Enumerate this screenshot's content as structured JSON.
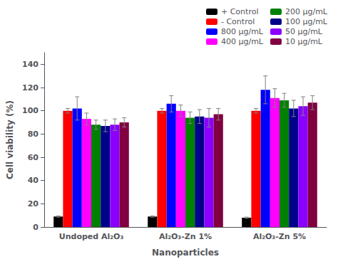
{
  "chart_data": {
    "type": "bar",
    "xlabel": "Nanoparticles",
    "ylabel": "Cell viability (%)",
    "categories": [
      "Undoped Al₂O₃",
      "Al₂O₃-Zn 1%",
      "Al₂O₃-Zn 5%"
    ],
    "series": [
      {
        "name": "+ Control",
        "color": "#000000",
        "values": [
          9,
          9,
          8
        ],
        "errors": [
          0.5,
          0.5,
          0.5
        ]
      },
      {
        "name": "- Control",
        "color": "#ff0000",
        "values": [
          100,
          100,
          100
        ],
        "errors": [
          2,
          2,
          2
        ]
      },
      {
        "name": "800 μg/mL",
        "color": "#0000ff",
        "values": [
          102,
          106,
          118
        ],
        "errors": [
          10,
          7,
          12
        ]
      },
      {
        "name": "400 μg/mL",
        "color": "#ff00ff",
        "values": [
          93,
          100,
          111
        ],
        "errors": [
          5,
          5,
          8
        ]
      },
      {
        "name": "200 μg/mL",
        "color": "#008000",
        "values": [
          88,
          94,
          109
        ],
        "errors": [
          4,
          5,
          6
        ]
      },
      {
        "name": "100 μg/mL",
        "color": "#00008b",
        "values": [
          87,
          95,
          102
        ],
        "errors": [
          5,
          6,
          7
        ]
      },
      {
        "name": "50 μg/mL",
        "color": "#8b00ff",
        "values": [
          88,
          94,
          104
        ],
        "errors": [
          5,
          8,
          8
        ]
      },
      {
        "name": "10 μg/mL",
        "color": "#800040",
        "values": [
          90,
          97,
          107
        ],
        "errors": [
          4,
          5,
          6
        ]
      }
    ],
    "ylim": [
      0,
      150
    ],
    "yticks": [
      0,
      20,
      40,
      60,
      80,
      100,
      120,
      140
    ],
    "grid": false,
    "legend": "upper right"
  }
}
